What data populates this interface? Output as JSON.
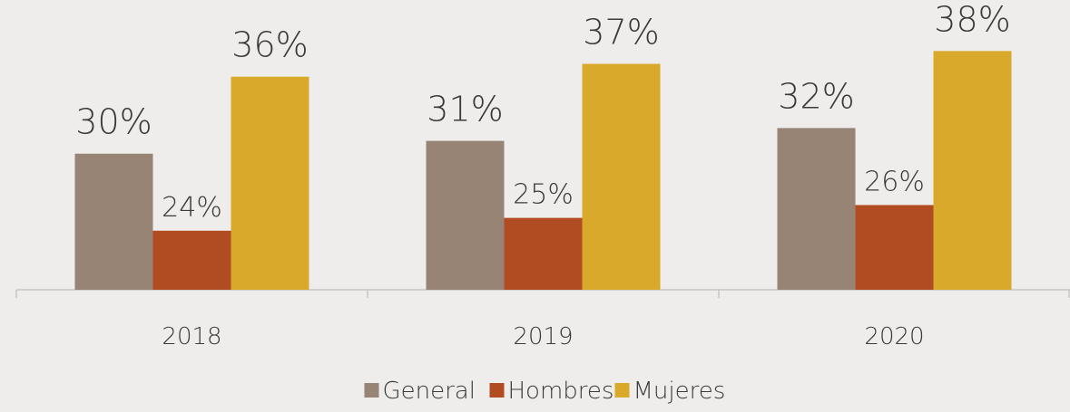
{
  "chart_data": {
    "type": "bar",
    "categories": [
      "2018",
      "2019",
      "2020"
    ],
    "series": [
      {
        "name": "General",
        "color": "#978475",
        "values": [
          30,
          31,
          32
        ],
        "value_labels": [
          "30%",
          "31%",
          "32%"
        ]
      },
      {
        "name": "Hombres",
        "color": "#b04b22",
        "values": [
          24,
          25,
          26
        ],
        "value_labels": [
          "24%",
          "25%",
          "26%"
        ]
      },
      {
        "name": "Mujeres",
        "color": "#d9a92c",
        "values": [
          36,
          37,
          38
        ],
        "value_labels": [
          "36%",
          "37%",
          "38%"
        ]
      }
    ],
    "ylim": [
      19.4,
      40
    ],
    "legend": "bottom"
  }
}
